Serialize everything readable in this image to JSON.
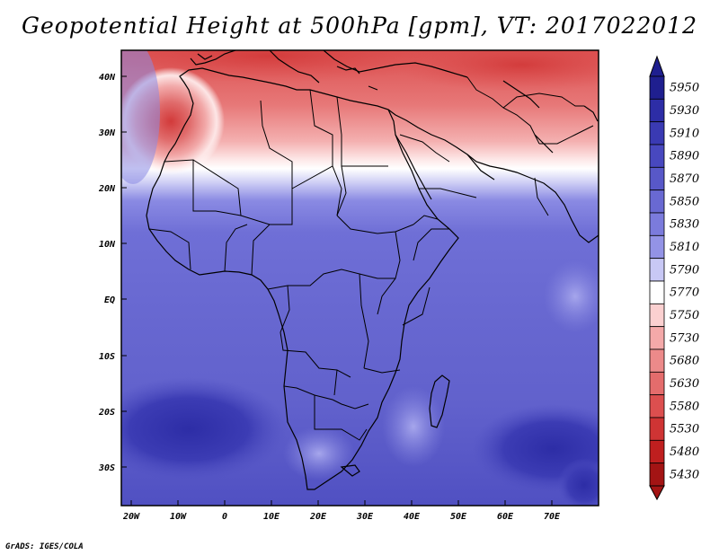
{
  "title": "Geopotential Height at 500hPa [gpm], VT: 2017022012",
  "footer": "GrADS: IGES/COLA",
  "map": {
    "lat_ticks": [
      "40N",
      "30N",
      "20N",
      "10N",
      "EQ",
      "10S",
      "20S",
      "30S"
    ],
    "lon_ticks": [
      "20W",
      "10W",
      "0",
      "10E",
      "20E",
      "30E",
      "40E",
      "50E",
      "60E",
      "70E"
    ]
  },
  "colorbar": {
    "levels": [
      "5950",
      "5930",
      "5910",
      "5890",
      "5870",
      "5850",
      "5830",
      "5810",
      "5790",
      "5770",
      "5750",
      "5730",
      "5680",
      "5630",
      "5580",
      "5530",
      "5480",
      "5430"
    ],
    "colors": [
      "#1f1f8f",
      "#2d2da6",
      "#3a3ab3",
      "#4848bf",
      "#5858c8",
      "#6969d2",
      "#7b7bdc",
      "#9393e6",
      "#c8c8f5",
      "#ffffff",
      "#fbd0d0",
      "#f4a9a9",
      "#ec8a8a",
      "#e46c6c",
      "#dc4f4f",
      "#cf3434",
      "#bf1f1f",
      "#a31414"
    ]
  }
}
